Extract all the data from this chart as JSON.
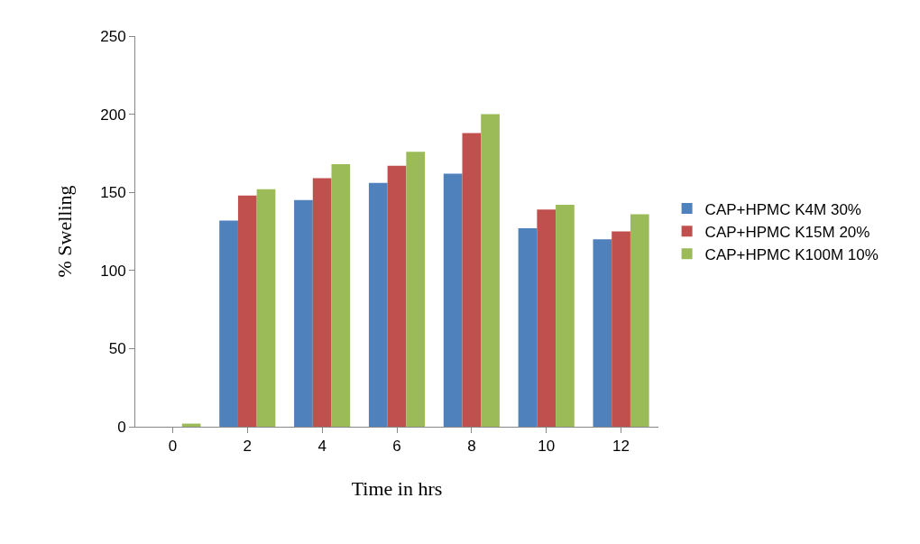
{
  "chart_data": {
    "type": "bar",
    "xlabel": "Time in hrs",
    "ylabel": "% Swelling",
    "categories": [
      "0",
      "2",
      "4",
      "6",
      "8",
      "10",
      "12"
    ],
    "series": [
      {
        "name": "CAP+HPMC K4M 30%",
        "color": "#4f81bd",
        "values": [
          0,
          132,
          145,
          156,
          162,
          127,
          120
        ]
      },
      {
        "name": "CAP+HPMC K15M 20%",
        "color": "#c0504d",
        "values": [
          0,
          148,
          159,
          167,
          188,
          139,
          125
        ]
      },
      {
        "name": "CAP+HPMC K100M 10%",
        "color": "#9bbb59",
        "values": [
          2,
          152,
          168,
          176,
          200,
          142,
          136
        ]
      }
    ],
    "ylim": [
      0,
      250
    ],
    "yticks": [
      0,
      50,
      100,
      150,
      200,
      250
    ],
    "grid": false,
    "legend": "right"
  }
}
